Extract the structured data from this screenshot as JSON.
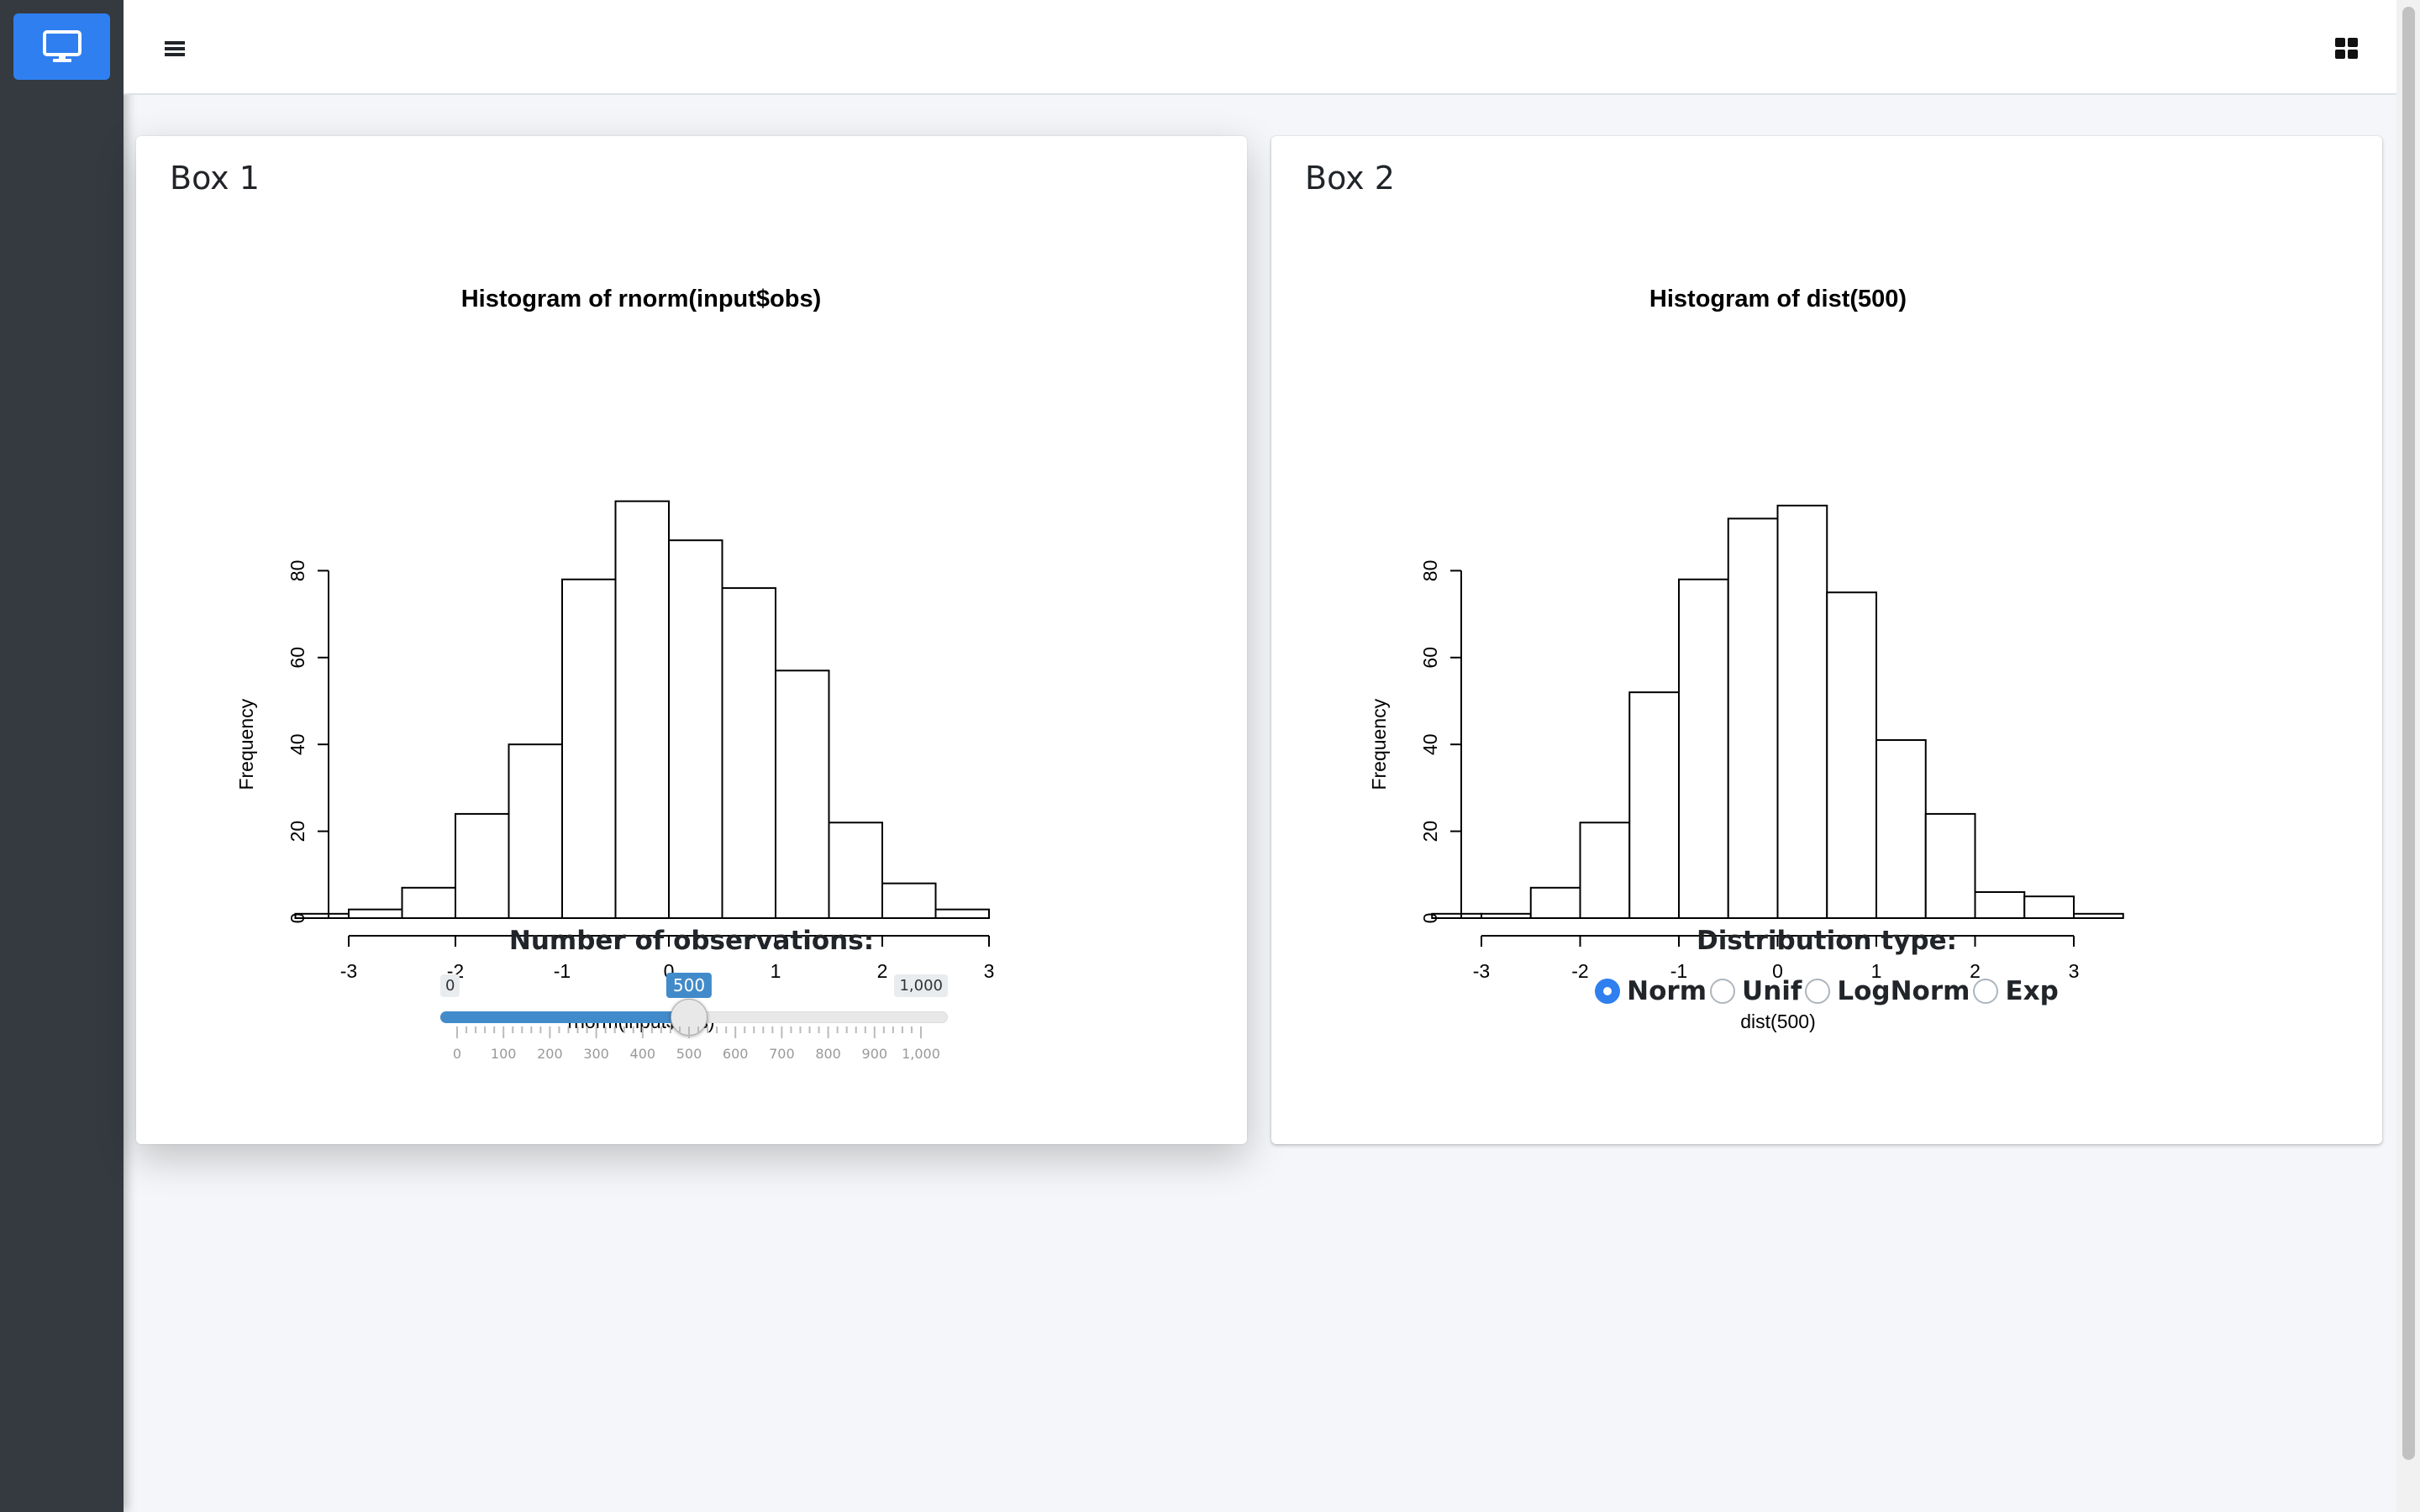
{
  "icons": {
    "brand": "desktop-icon",
    "menu": "bars-icon",
    "control_bar": "th-large-icon"
  },
  "colors": {
    "accent": "#2f7ff0",
    "sidebar": "#343a40",
    "slider_fill": "#428bca"
  },
  "box1": {
    "title": "Box 1",
    "control_label": "Number of observations:",
    "slider": {
      "min": 0,
      "max": 1000,
      "value": 500,
      "min_label": "0",
      "max_label": "1,000",
      "value_label": "500",
      "tick_labels": [
        "0",
        "100",
        "200",
        "300",
        "400",
        "500",
        "600",
        "700",
        "800",
        "900",
        "1,000"
      ]
    }
  },
  "box2": {
    "title": "Box 2",
    "control_label": "Distribution type:",
    "options": [
      {
        "label": "Norm",
        "checked": true
      },
      {
        "label": "Unif",
        "checked": false
      },
      {
        "label": "LogNorm",
        "checked": false
      },
      {
        "label": "Exp",
        "checked": false
      }
    ]
  },
  "chart_data": [
    {
      "type": "bar",
      "title": "Histogram of rnorm(input$obs)",
      "xlabel": "rnorm(input$obs)",
      "ylabel": "Frequency",
      "bin_edges": [
        -3.5,
        -3.0,
        -2.5,
        -2.0,
        -1.5,
        -1.0,
        -0.5,
        0.0,
        0.5,
        1.0,
        1.5,
        2.0,
        2.5,
        3.0
      ],
      "values": [
        1,
        2,
        7,
        24,
        40,
        78,
        96,
        87,
        76,
        57,
        22,
        8,
        2
      ],
      "xticks": [
        -3,
        -2,
        -1,
        0,
        1,
        2,
        3
      ],
      "xtick_labels": [
        "-3",
        "-2",
        "-1",
        "0",
        "1",
        "2",
        "3"
      ],
      "yticks": [
        0,
        20,
        40,
        60,
        80
      ],
      "ytick_labels": [
        "0",
        "20",
        "40",
        "60",
        "80"
      ],
      "xlim": [
        -3.5,
        3.0
      ],
      "ylim": [
        0,
        96
      ]
    },
    {
      "type": "bar",
      "title": "Histogram of dist(500)",
      "xlabel": "dist(500)",
      "ylabel": "Frequency",
      "bin_edges": [
        -3.5,
        -3.0,
        -2.5,
        -2.0,
        -1.5,
        -1.0,
        -0.5,
        0.0,
        0.5,
        1.0,
        1.5,
        2.0,
        2.5,
        3.0,
        3.5
      ],
      "values": [
        1,
        1,
        7,
        22,
        52,
        78,
        92,
        95,
        75,
        41,
        24,
        6,
        5,
        1
      ],
      "xticks": [
        -3,
        -2,
        -1,
        0,
        1,
        2,
        3
      ],
      "xtick_labels": [
        "-3",
        "-2",
        "-1",
        "0",
        "1",
        "2",
        "3"
      ],
      "yticks": [
        0,
        20,
        40,
        60,
        80
      ],
      "ytick_labels": [
        "0",
        "20",
        "40",
        "60",
        "80"
      ],
      "xlim": [
        -3.5,
        3.5
      ],
      "ylim": [
        0,
        95
      ]
    }
  ]
}
